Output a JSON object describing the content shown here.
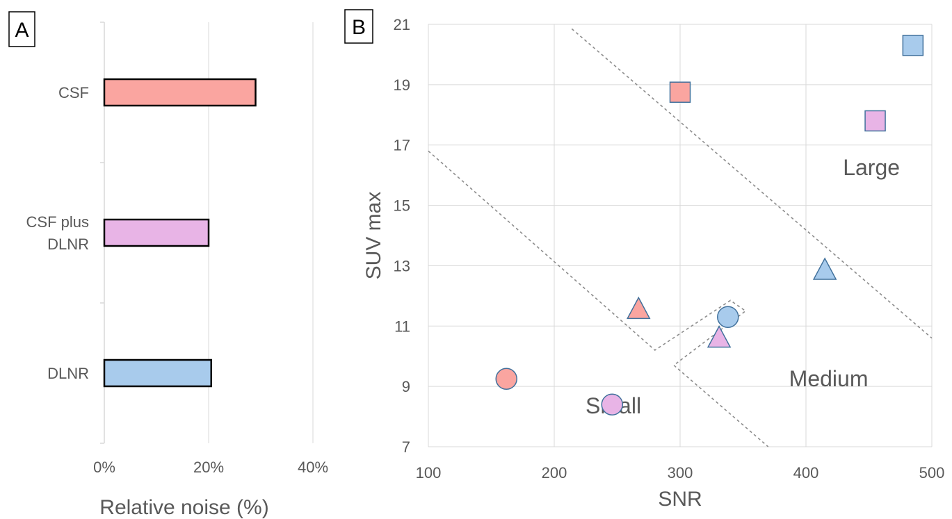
{
  "chart_data": [
    {
      "panel": "A",
      "type": "bar",
      "orientation": "horizontal",
      "categories": [
        "CSF",
        "CSF plus DLNR",
        "DLNR"
      ],
      "category_lines": [
        [
          "CSF"
        ],
        [
          "CSF plus",
          "DLNR"
        ],
        [
          "DLNR"
        ]
      ],
      "values": [
        29,
        20,
        20.5
      ],
      "unit": "%",
      "colors": [
        "#FAA5A0",
        "#E8B4E6",
        "#A8CBEC"
      ],
      "xlabel": "Relative noise (%)",
      "xlim": [
        0,
        40
      ],
      "xticks": [
        0,
        20,
        40
      ],
      "xtick_labels": [
        "0%",
        "20%",
        "40%"
      ],
      "grid": true
    },
    {
      "panel": "B",
      "type": "scatter",
      "xlabel": "SNR",
      "ylabel": "SUV max",
      "xlim": [
        100,
        500
      ],
      "ylim": [
        7,
        21
      ],
      "xticks": [
        100,
        200,
        300,
        400,
        500
      ],
      "yticks": [
        7,
        9,
        11,
        13,
        15,
        17,
        19,
        21
      ],
      "grid": true,
      "series_colors": {
        "CSF": "#FAA5A0",
        "CSF plus DLNR": "#E8B4E6",
        "DLNR": "#A8CBEC"
      },
      "size_markers": {
        "Small": "circle",
        "Medium": "triangle",
        "Large": "square"
      },
      "points": [
        {
          "group": "CSF",
          "size": "Small",
          "x": 162,
          "y": 9.25
        },
        {
          "group": "CSF plus DLNR",
          "size": "Small",
          "x": 246,
          "y": 8.4
        },
        {
          "group": "DLNR",
          "size": "Small",
          "x": 338,
          "y": 11.3
        },
        {
          "group": "CSF",
          "size": "Medium",
          "x": 267,
          "y": 11.55
        },
        {
          "group": "CSF plus DLNR",
          "size": "Medium",
          "x": 331,
          "y": 10.6
        },
        {
          "group": "DLNR",
          "size": "Medium",
          "x": 415,
          "y": 12.85
        },
        {
          "group": "CSF",
          "size": "Large",
          "x": 300,
          "y": 18.75
        },
        {
          "group": "CSF plus DLNR",
          "size": "Large",
          "x": 455,
          "y": 17.8
        },
        {
          "group": "DLNR",
          "size": "Large",
          "x": 485,
          "y": 20.3
        }
      ],
      "region_labels": [
        {
          "text": "Small",
          "x": 247,
          "y": 8.1
        },
        {
          "text": "Medium",
          "x": 418,
          "y": 9.0
        },
        {
          "text": "Large",
          "x": 452,
          "y": 16.0
        }
      ],
      "boundaries": [
        [
          [
            100,
            16.8
          ],
          [
            280,
            10.2
          ],
          [
            340,
            11.85
          ],
          [
            352,
            11.5
          ],
          [
            295,
            9.7
          ],
          [
            370,
            7.0
          ]
        ],
        [
          [
            214,
            20.85
          ],
          [
            500,
            10.6
          ]
        ]
      ]
    }
  ]
}
